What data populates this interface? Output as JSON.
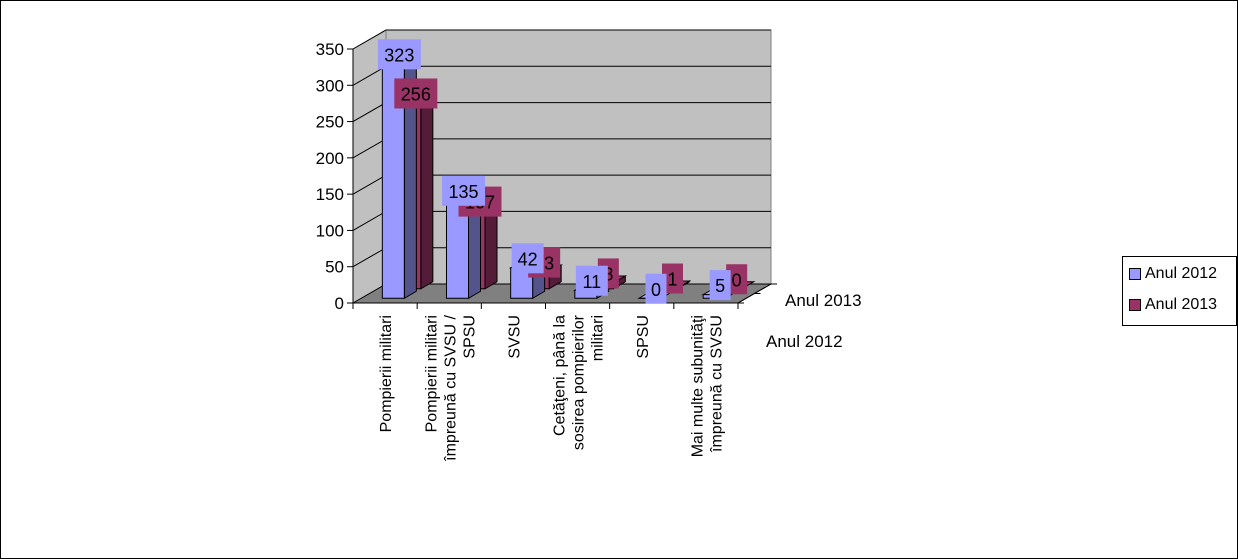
{
  "chart_data": {
    "type": "bar",
    "subtype": "3d-clustered-column",
    "categories": [
      [
        "Pompierii militari"
      ],
      [
        "Pompierii militari",
        "împreună cu SVSU /",
        "SPSU"
      ],
      [
        "SVSU"
      ],
      [
        "Cetăţeni, până la",
        "sosirea pompierilor",
        "militari"
      ],
      [
        "SPSU"
      ],
      [
        "Mai multe subunităţi",
        "împreună cu SVSU"
      ]
    ],
    "series": [
      {
        "name": "Anul 2012",
        "color": "#9999ff",
        "values": [
          323,
          135,
          42,
          11,
          0,
          5
        ],
        "labels": [
          "323",
          "135",
          "42",
          "11",
          "0",
          "5"
        ]
      },
      {
        "name": "Anul 2013",
        "color": "#993366",
        "values": [
          256,
          107,
          23,
          8,
          1,
          0
        ],
        "labels": [
          "256",
          "107",
          "23",
          "8",
          "1",
          "0"
        ]
      }
    ],
    "depth_axis_labels": [
      "Anul 2013",
      "Anul 2012"
    ],
    "y_ticks": [
      "0",
      "50",
      "100",
      "150",
      "200",
      "250",
      "300",
      "350"
    ],
    "ylim": [
      0,
      350
    ],
    "grid": true,
    "legend_position": "right"
  }
}
